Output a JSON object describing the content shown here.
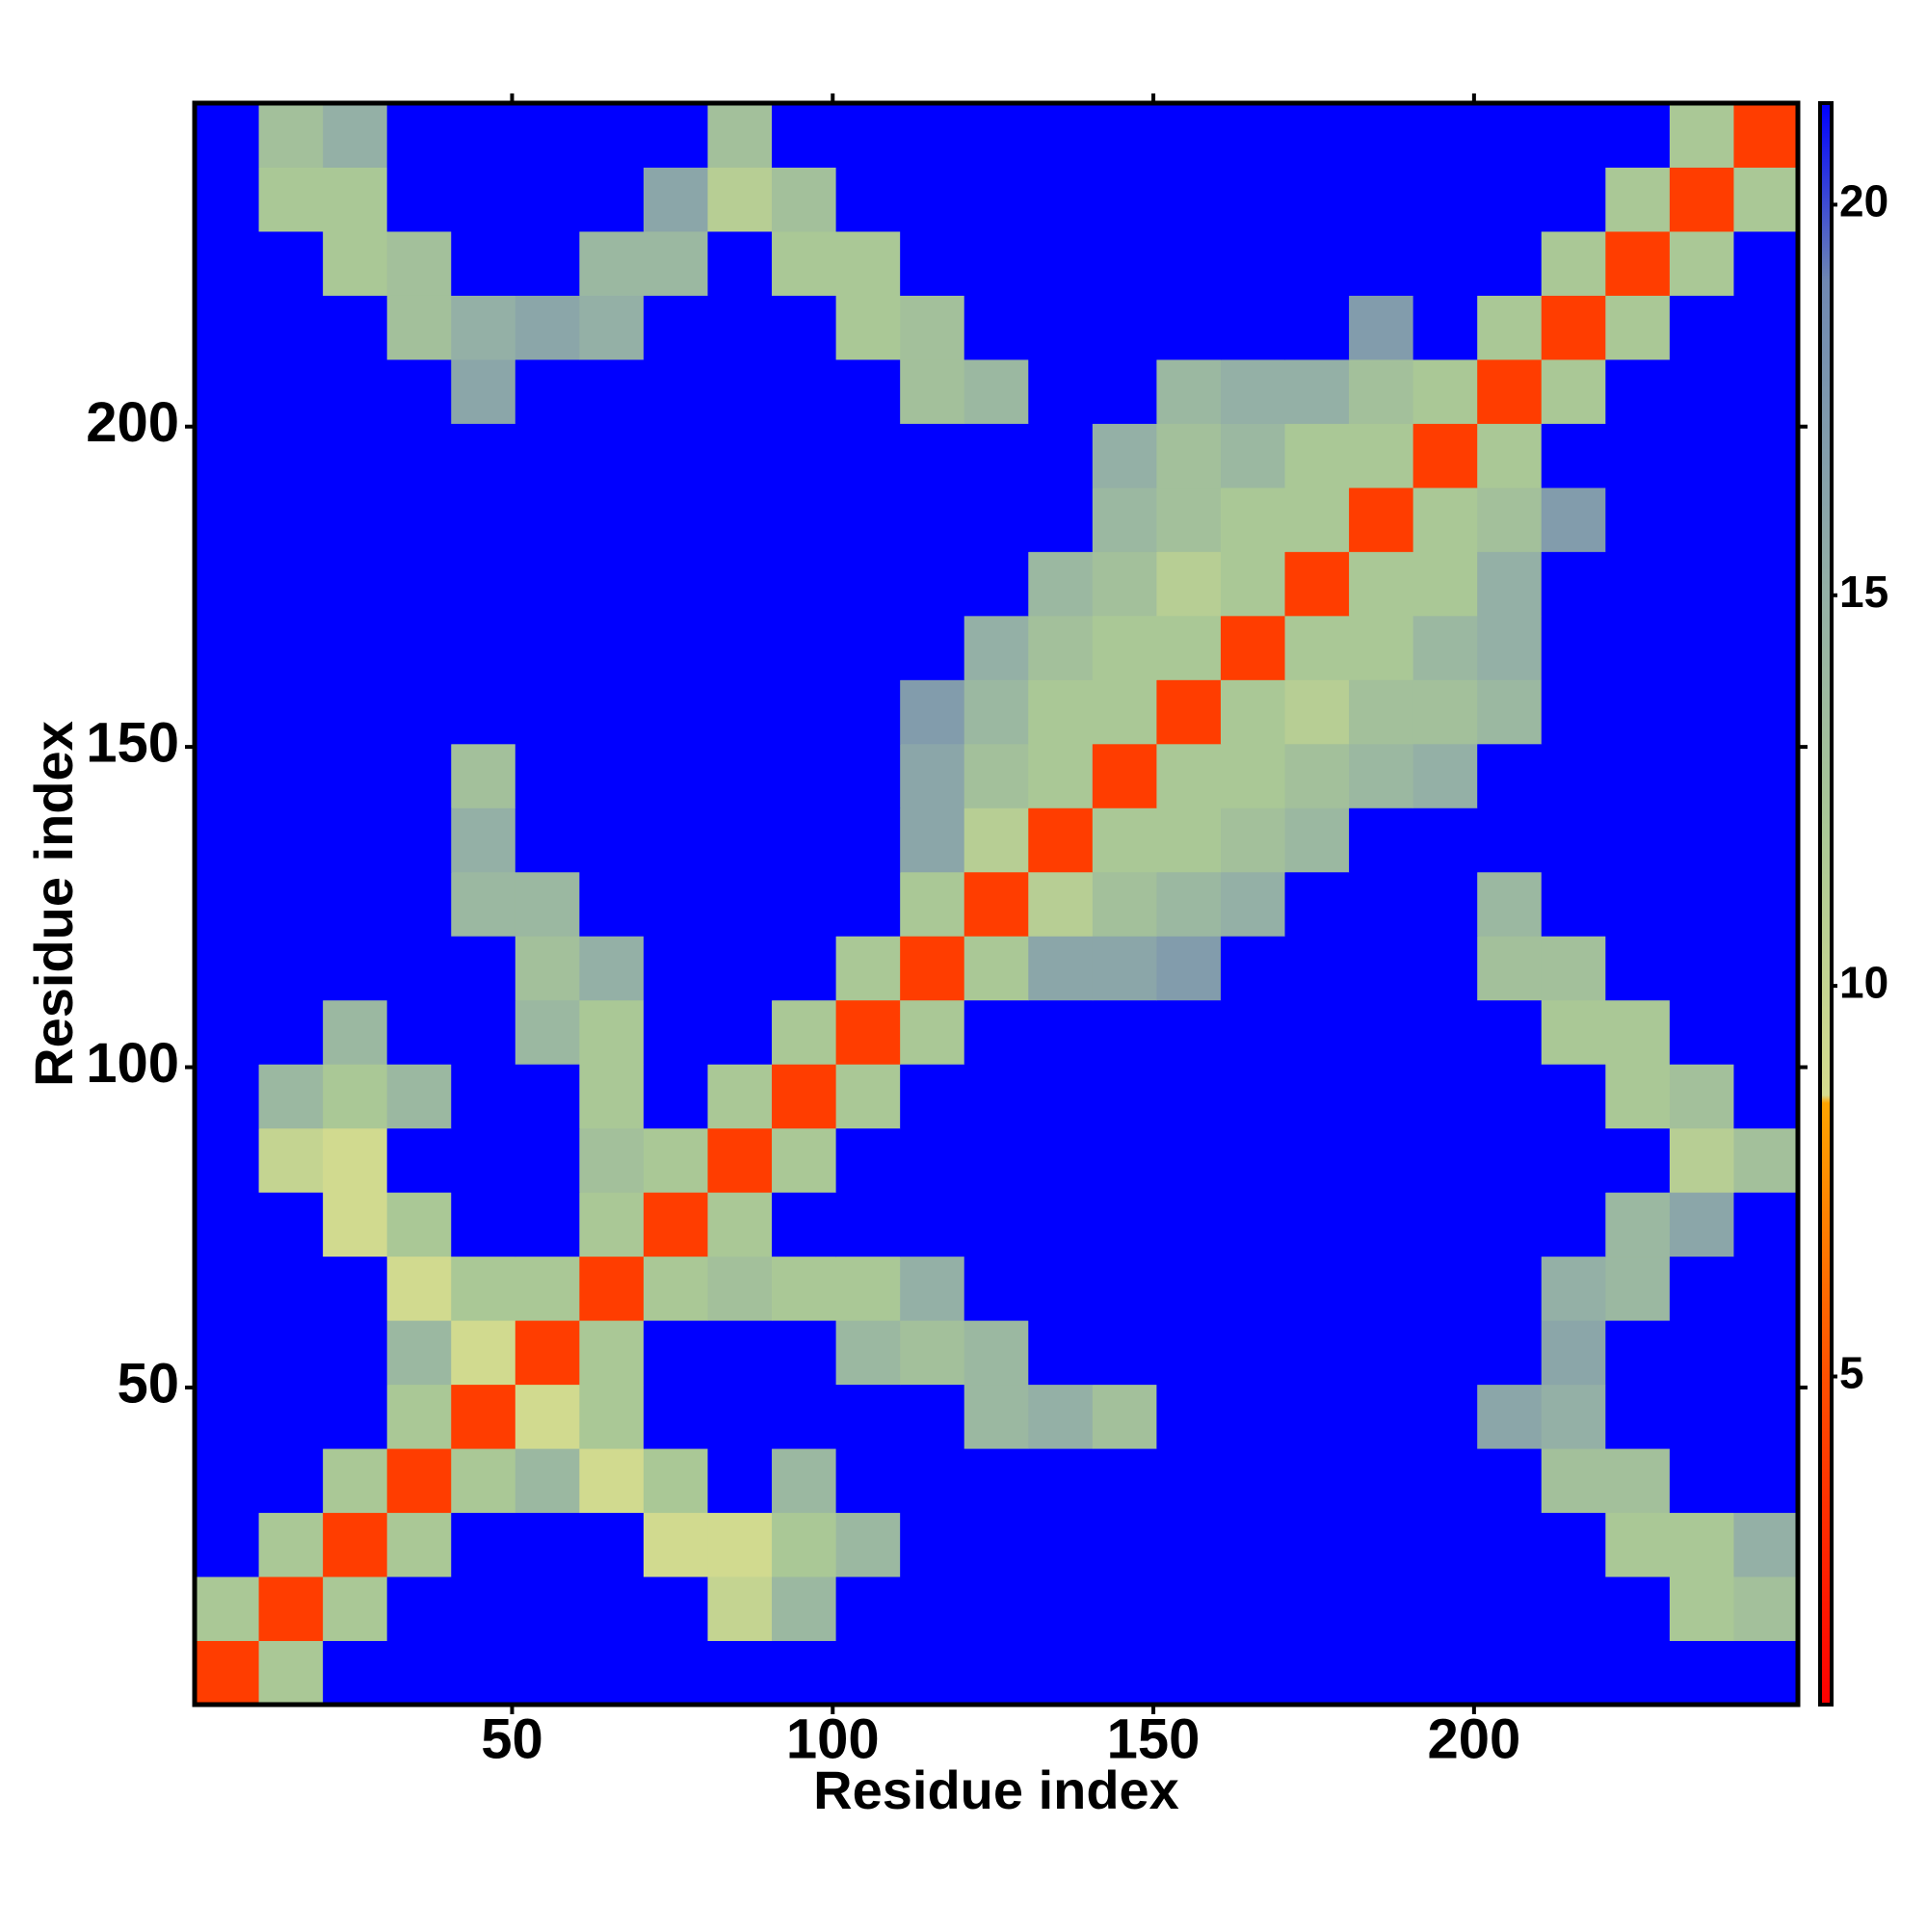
{
  "chart_data": {
    "type": "heatmap",
    "x_label": "Residue index",
    "y_label": "Residue index",
    "x_bins": [
      0.5,
      10.5,
      20.5,
      30.5,
      40.5,
      50.5,
      60.5,
      70.5,
      80.5,
      90.5,
      100.5,
      110.5,
      120.5,
      130.5,
      140.5,
      150.5,
      160.5,
      170.5,
      180.5,
      190.5,
      200.5,
      210.5,
      220.5,
      230.5,
      240.5,
      250.5
    ],
    "y_bins": [
      0.5,
      10.5,
      20.5,
      30.5,
      40.5,
      50.5,
      60.5,
      70.5,
      80.5,
      90.5,
      100.5,
      110.5,
      120.5,
      130.5,
      140.5,
      150.5,
      160.5,
      170.5,
      180.5,
      190.5,
      200.5,
      210.5,
      220.5,
      230.5,
      240.5,
      250.5
    ],
    "xlim": [
      0.5,
      250.5
    ],
    "ylim": [
      0.5,
      250.5
    ],
    "xticks": [
      50,
      100,
      150,
      200
    ],
    "yticks": [
      50,
      100,
      150,
      200
    ],
    "clim": [
      0.8,
      21.3
    ],
    "cticks": [
      5,
      10,
      15,
      20
    ],
    "colorscale": [
      [
        0.8,
        "#ff0000"
      ],
      [
        5,
        "#ff5000"
      ],
      [
        8.5,
        "#ffa500"
      ],
      [
        8.6,
        "#d6dc8e"
      ],
      [
        12,
        "#aac896"
      ],
      [
        15,
        "#94b0a6"
      ],
      [
        19,
        "#6f88b2"
      ],
      [
        21.3,
        "#0000ff"
      ]
    ],
    "z": [
      [
        4,
        12,
        22,
        22,
        22,
        22,
        22,
        22,
        22,
        22,
        22,
        22,
        22,
        22,
        22,
        22,
        22,
        22,
        22,
        22,
        22,
        22,
        22,
        22,
        22
      ],
      [
        12,
        4,
        12,
        22,
        22,
        22,
        22,
        22,
        10,
        14,
        22,
        22,
        22,
        22,
        22,
        22,
        22,
        22,
        22,
        22,
        22,
        22,
        22,
        12,
        13
      ],
      [
        22,
        12,
        4,
        12,
        22,
        22,
        22,
        9,
        9,
        12,
        14,
        22,
        22,
        22,
        22,
        22,
        22,
        22,
        22,
        22,
        22,
        22,
        12,
        12,
        15
      ],
      [
        22,
        22,
        12,
        4,
        12,
        14,
        9,
        12,
        22,
        14,
        22,
        22,
        22,
        22,
        22,
        22,
        22,
        22,
        22,
        22,
        22,
        13,
        13,
        22,
        22
      ],
      [
        22,
        22,
        22,
        12,
        4,
        9,
        12,
        22,
        22,
        22,
        22,
        22,
        14,
        15,
        13,
        22,
        22,
        22,
        22,
        22,
        16,
        15,
        22,
        22,
        22
      ],
      [
        22,
        22,
        22,
        14,
        9,
        4,
        12,
        22,
        22,
        22,
        14,
        13,
        14,
        22,
        22,
        22,
        22,
        22,
        22,
        22,
        22,
        16,
        22,
        22,
        22
      ],
      [
        22,
        22,
        22,
        9,
        12,
        12,
        4,
        12,
        13,
        12,
        12,
        15,
        22,
        22,
        22,
        22,
        22,
        22,
        22,
        22,
        22,
        15,
        14,
        22,
        22
      ],
      [
        22,
        22,
        9,
        12,
        22,
        22,
        12,
        4,
        12,
        22,
        22,
        22,
        22,
        22,
        22,
        22,
        22,
        22,
        22,
        22,
        22,
        22,
        14,
        16,
        22
      ],
      [
        22,
        10,
        9,
        22,
        22,
        22,
        13,
        12,
        4,
        12,
        22,
        22,
        22,
        22,
        22,
        22,
        22,
        22,
        22,
        22,
        22,
        22,
        22,
        11,
        13
      ],
      [
        22,
        14,
        12,
        14,
        22,
        22,
        12,
        22,
        12,
        4,
        12,
        22,
        22,
        22,
        22,
        22,
        22,
        22,
        22,
        22,
        22,
        22,
        12,
        13,
        22
      ],
      [
        22,
        22,
        14,
        22,
        22,
        14,
        12,
        22,
        22,
        12,
        4,
        12,
        22,
        22,
        22,
        22,
        22,
        22,
        22,
        22,
        22,
        12,
        12,
        22,
        22
      ],
      [
        22,
        22,
        22,
        22,
        22,
        13,
        15,
        22,
        22,
        22,
        12,
        4,
        12,
        16,
        16,
        17,
        22,
        22,
        22,
        22,
        13,
        13,
        22,
        22,
        22
      ],
      [
        22,
        22,
        22,
        22,
        14,
        14,
        22,
        22,
        22,
        22,
        22,
        12,
        4,
        11,
        13,
        14,
        15,
        22,
        22,
        22,
        14,
        22,
        22,
        22,
        22
      ],
      [
        22,
        22,
        22,
        22,
        15,
        22,
        22,
        22,
        22,
        22,
        22,
        16,
        11,
        4,
        12,
        12,
        13,
        14,
        22,
        22,
        22,
        22,
        22,
        22,
        22
      ],
      [
        22,
        22,
        22,
        22,
        13,
        22,
        22,
        22,
        22,
        22,
        22,
        16,
        13,
        12,
        4,
        12,
        12,
        13,
        14,
        15,
        22,
        22,
        22,
        22,
        22
      ],
      [
        22,
        22,
        22,
        22,
        22,
        22,
        22,
        22,
        22,
        22,
        22,
        17,
        14,
        12,
        12,
        4,
        12,
        11,
        13,
        13,
        14,
        22,
        22,
        22,
        22
      ],
      [
        22,
        22,
        22,
        22,
        22,
        22,
        22,
        22,
        22,
        22,
        22,
        22,
        15,
        13,
        12,
        12,
        4,
        12,
        12,
        14,
        15,
        22,
        22,
        22,
        22
      ],
      [
        22,
        22,
        22,
        22,
        22,
        22,
        22,
        22,
        22,
        22,
        22,
        22,
        22,
        14,
        13,
        11,
        12,
        4,
        12,
        12,
        15,
        22,
        22,
        22,
        22
      ],
      [
        22,
        22,
        22,
        22,
        22,
        22,
        22,
        22,
        22,
        22,
        22,
        22,
        22,
        22,
        14,
        13,
        12,
        12,
        4,
        12,
        13,
        17,
        22,
        22,
        22
      ],
      [
        22,
        22,
        22,
        22,
        22,
        22,
        22,
        22,
        22,
        22,
        22,
        22,
        22,
        22,
        15,
        13,
        14,
        12,
        12,
        4,
        12,
        22,
        22,
        22,
        22
      ],
      [
        22,
        22,
        22,
        22,
        16,
        22,
        22,
        22,
        22,
        22,
        22,
        13,
        14,
        22,
        22,
        14,
        15,
        15,
        13,
        12,
        4,
        12,
        22,
        22,
        22
      ],
      [
        22,
        22,
        22,
        13,
        15,
        16,
        15,
        22,
        22,
        22,
        12,
        13,
        22,
        22,
        22,
        22,
        22,
        22,
        17,
        22,
        12,
        4,
        12,
        22,
        22
      ],
      [
        22,
        22,
        12,
        13,
        22,
        22,
        14,
        14,
        22,
        12,
        12,
        22,
        22,
        22,
        22,
        22,
        22,
        22,
        22,
        22,
        22,
        12,
        4,
        12,
        22
      ],
      [
        22,
        12,
        12,
        22,
        22,
        22,
        22,
        16,
        11,
        13,
        22,
        22,
        22,
        22,
        22,
        22,
        22,
        22,
        22,
        22,
        22,
        22,
        12,
        4,
        12
      ],
      [
        22,
        13,
        15,
        22,
        22,
        22,
        22,
        22,
        13,
        22,
        22,
        22,
        22,
        22,
        22,
        22,
        22,
        22,
        22,
        22,
        22,
        22,
        22,
        12,
        4
      ]
    ]
  }
}
